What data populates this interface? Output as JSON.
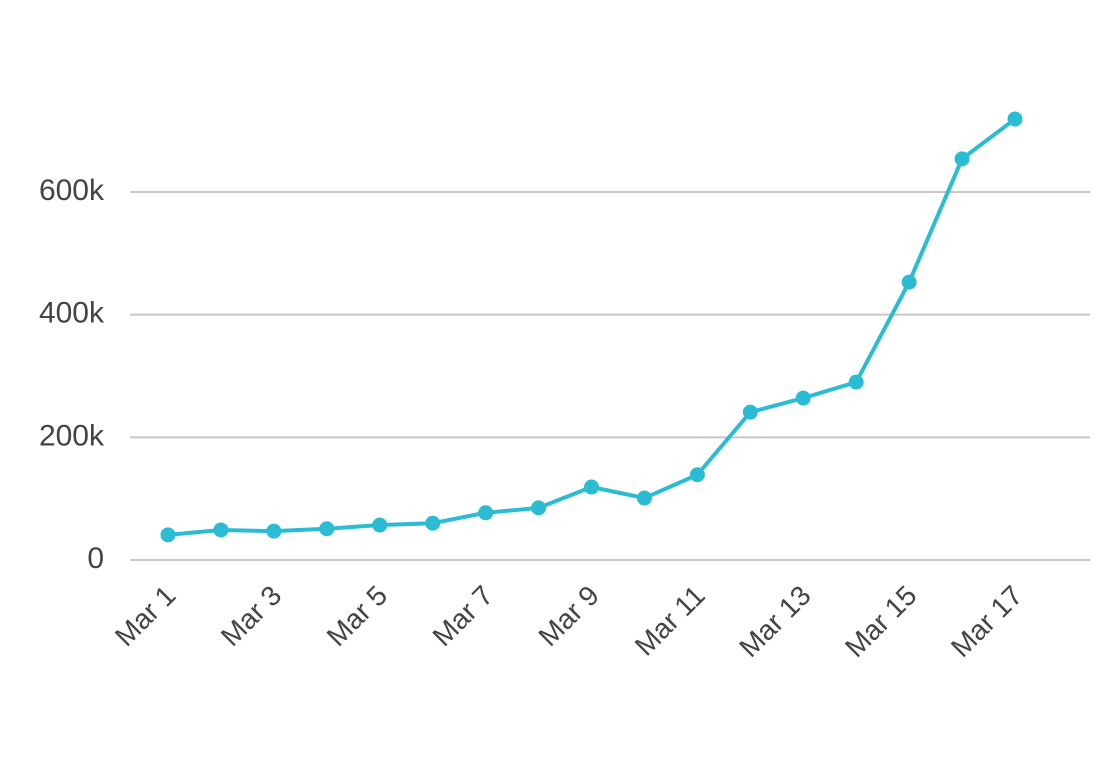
{
  "chart_data": {
    "type": "line",
    "categories": [
      "Mar 1",
      null,
      "Mar 3",
      null,
      "Mar 5",
      null,
      "Mar 7",
      null,
      "Mar 9",
      null,
      "Mar 11",
      null,
      "Mar 13",
      null,
      "Mar 15",
      null,
      "Mar 17"
    ],
    "series": [
      {
        "color": "#2bbcd4",
        "values": [
          41000,
          49000,
          47000,
          51000,
          57000,
          60000,
          77000,
          85000,
          119000,
          101000,
          139000,
          241000,
          264000,
          290000,
          453000,
          654000,
          719000
        ]
      }
    ],
    "ylim": [
      0,
      750000
    ],
    "yticks": [
      0,
      {
        "value": 200000,
        "label": "200k"
      },
      {
        "value": 400000,
        "label": "400k"
      },
      {
        "value": 600000,
        "label": "600k"
      }
    ],
    "grid": true
  }
}
